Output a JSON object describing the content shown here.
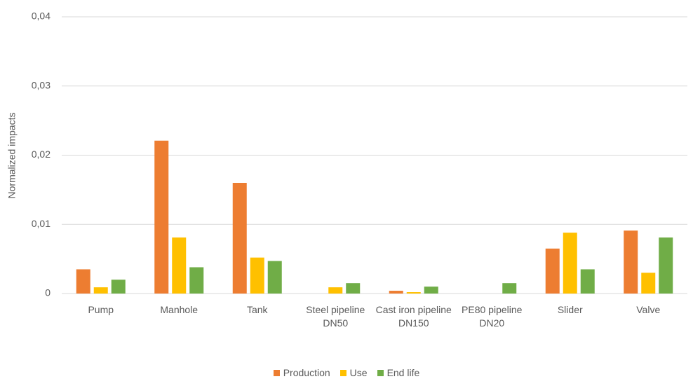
{
  "chart_data": {
    "type": "bar",
    "y_label": "Normalized impacts",
    "categories": [
      "Pump",
      "Manhole",
      "Tank",
      "Steel pipeline DN50",
      "Cast iron pipeline DN150",
      "PE80 pipeline DN20",
      "Slider",
      "Valve"
    ],
    "series": [
      {
        "name": "Production",
        "color": "#ed7d31",
        "values": [
          0.0035,
          0.0221,
          0.016,
          0,
          0.0004,
          0,
          0.0065,
          0.0091
        ]
      },
      {
        "name": "Use",
        "color": "#ffc000",
        "values": [
          0.0009,
          0.0081,
          0.0052,
          0.0009,
          0.0002,
          0,
          0.0088,
          0.003
        ]
      },
      {
        "name": "End life",
        "color": "#70ad47",
        "values": [
          0.002,
          0.0038,
          0.0047,
          0.0015,
          0.001,
          0.0015,
          0.0035,
          0.0081
        ]
      }
    ],
    "ylim": [
      0,
      0.04
    ],
    "yticks": [
      0,
      {
        "value": 0.01,
        "label": "0,01"
      },
      {
        "value": 0.02,
        "label": "0,02"
      },
      {
        "value": 0.03,
        "label": "0,03"
      },
      {
        "value": 0.04,
        "label": "0,04"
      }
    ],
    "grid": true,
    "legend": "bottom"
  }
}
